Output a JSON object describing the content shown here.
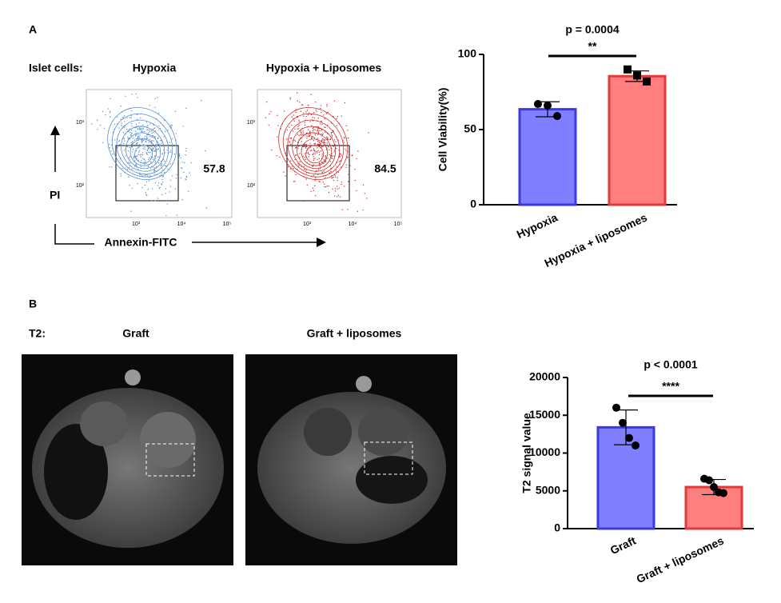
{
  "chart_data": [
    {
      "type": "bar",
      "ylabel": "Cell Viability(%)",
      "categories": [
        "Hypoxia",
        "Hypoxia + liposomes"
      ],
      "values": [
        63.5,
        85.5
      ],
      "errors": [
        5,
        3.5
      ],
      "points": [
        [
          67,
          66,
          59
        ],
        [
          90,
          86,
          82
        ]
      ],
      "markers": [
        "circle",
        "square"
      ],
      "colors": [
        "#7f7fff",
        "#ff7f7f"
      ],
      "edge_colors": [
        "#3a3ae0",
        "#e03a3a"
      ],
      "ylim": [
        0,
        100
      ],
      "yticks": [
        0,
        50,
        100
      ],
      "annotation": "p = 0.0004",
      "significance": "**"
    },
    {
      "type": "bar",
      "ylabel": "T2 signal value",
      "categories": [
        "Graft",
        "Graft + liposomes"
      ],
      "values": [
        13400,
        5500
      ],
      "errors": [
        2300,
        1000
      ],
      "points": [
        [
          16000,
          14000,
          12000,
          11000
        ],
        [
          6600,
          6400,
          5500,
          4800,
          4700
        ]
      ],
      "markers": [
        "circle",
        "circle"
      ],
      "colors": [
        "#7f7fff",
        "#ff7f7f"
      ],
      "edge_colors": [
        "#3a3ae0",
        "#e03a3a"
      ],
      "ylim": [
        0,
        20000
      ],
      "yticks": [
        0,
        5000,
        10000,
        15000,
        20000
      ],
      "annotation": "p < 0.0001",
      "significance": "****"
    }
  ],
  "panel_a": {
    "label": "A",
    "row_label": "Islet cells:",
    "y_axis": "PI",
    "x_axis": "Annexin-FITC",
    "plots": [
      {
        "title": "Hypoxia",
        "gate_value": "57.8"
      },
      {
        "title": "Hypoxia + Liposomes",
        "gate_value": "84.5"
      }
    ],
    "x_ticks": [
      "10³",
      "10⁴",
      "10⁵"
    ],
    "y_ticks": [
      "10³",
      "10²"
    ]
  },
  "panel_b": {
    "label": "B",
    "row_label": "T2:",
    "images": [
      "Graft",
      "Graft + liposomes"
    ]
  }
}
